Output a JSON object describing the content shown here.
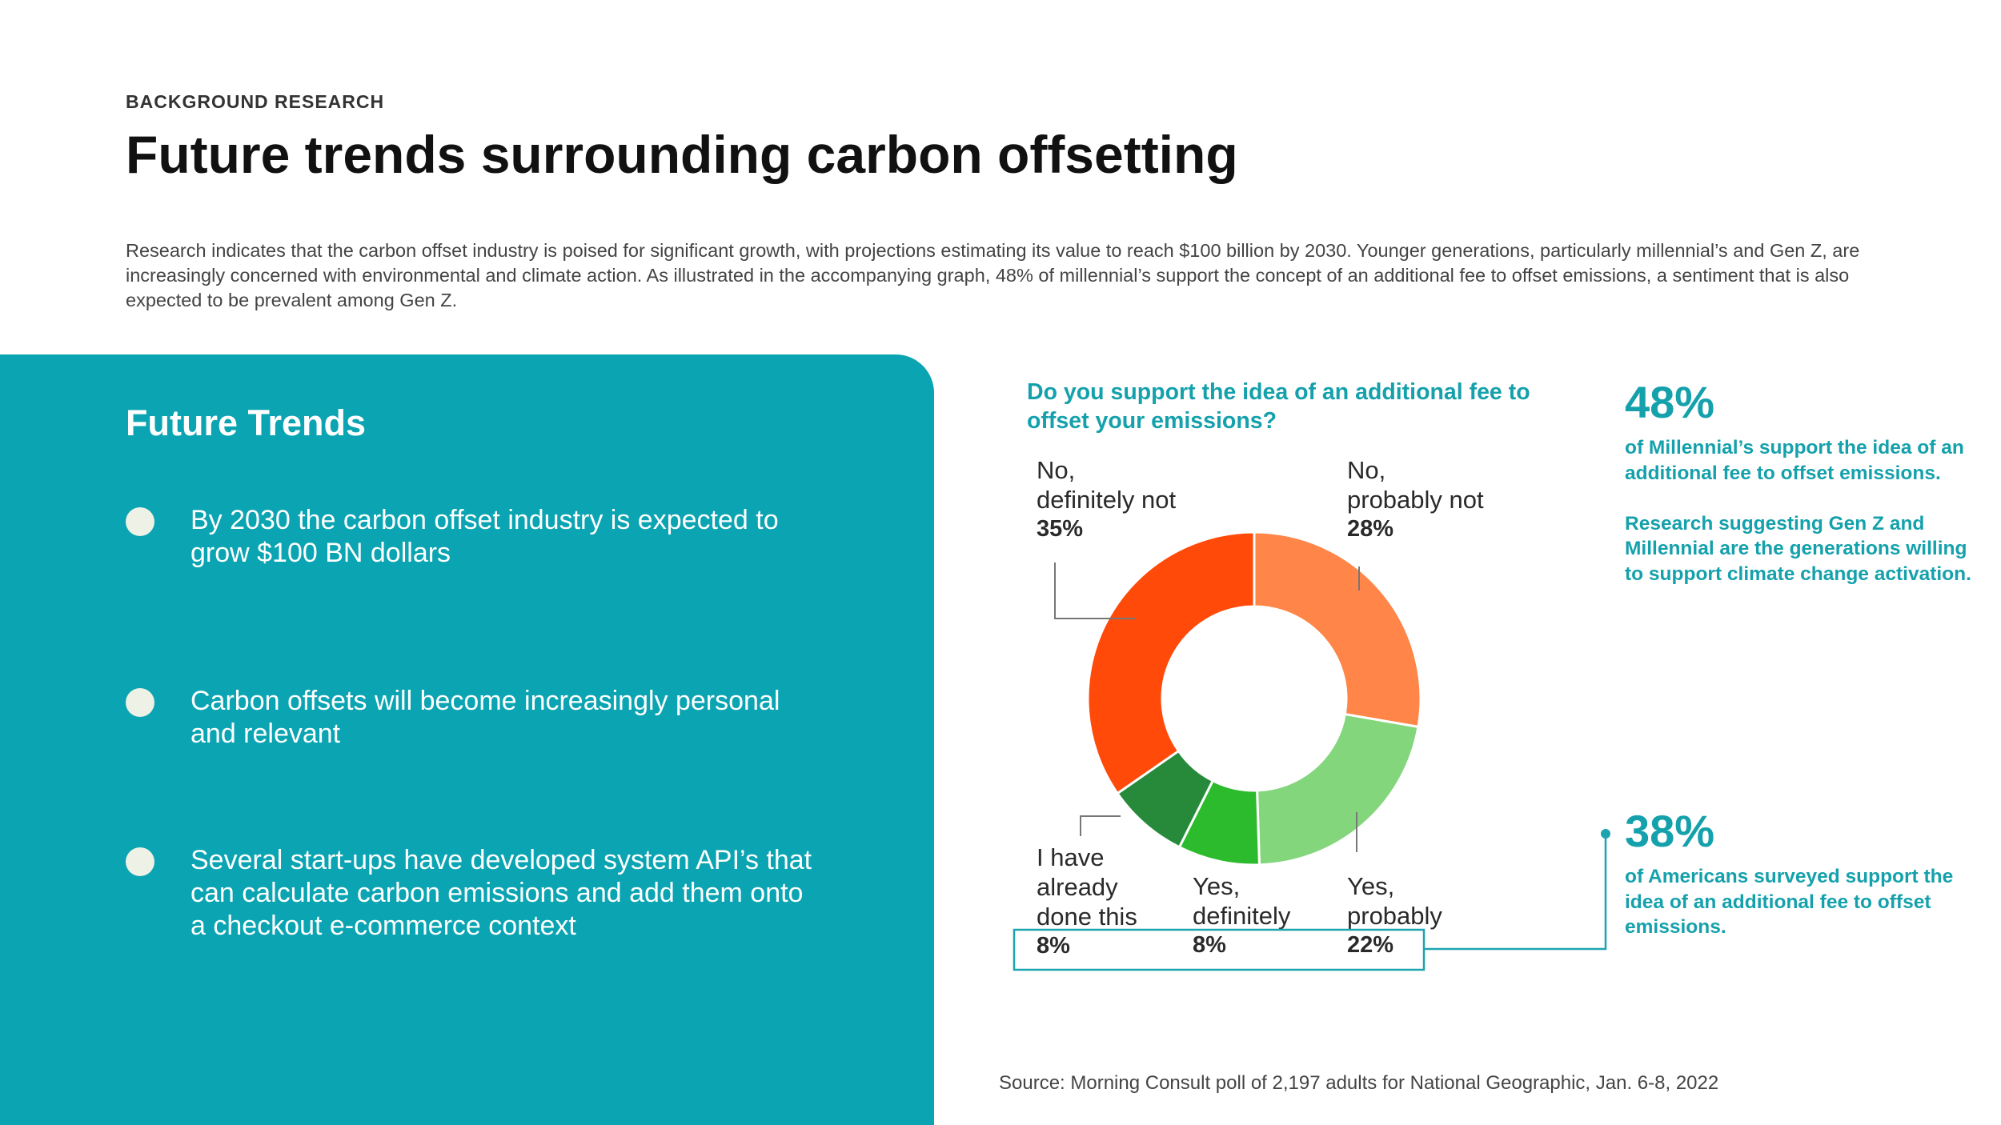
{
  "header": {
    "eyebrow": "BACKGROUND RESEARCH",
    "title": "Future trends surrounding carbon offsetting",
    "intro": "Research indicates that the carbon offset industry is poised for significant growth, with projections estimating its value to reach $100 billion by 2030. Younger generations, particularly millennial’s and Gen Z, are increasingly concerned with environmental and climate action. As illustrated in the accompanying graph, 48% of millennial’s support the concept of an additional fee to offset emissions, a sentiment that is also expected to be prevalent among Gen Z."
  },
  "trends": {
    "heading": "Future Trends",
    "items": [
      "By 2030 the carbon offset industry is expected to grow $100 BN dollars",
      "Carbon offsets will become increasingly personal and relevant",
      "Several start-ups have developed system API’s that can calculate carbon emissions and add them onto a checkout e-commerce context"
    ]
  },
  "chart_data": {
    "type": "pie",
    "donut": true,
    "title": "Do you support the idea of an additional fee to offset your emissions?",
    "slices": [
      {
        "label_lines": [
          "No,",
          "probably not"
        ],
        "value": 28,
        "pct": "28%",
        "color": "#ff8548"
      },
      {
        "label_lines": [
          "Yes,",
          "probably"
        ],
        "value": 22,
        "pct": "22%",
        "color": "#84d67c"
      },
      {
        "label_lines": [
          "Yes,",
          "definitely"
        ],
        "value": 8,
        "pct": "8%",
        "color": "#2cbb2c"
      },
      {
        "label_lines": [
          "I have",
          "already",
          "done this"
        ],
        "value": 8,
        "pct": "8%",
        "color": "#268a3a"
      },
      {
        "label_lines": [
          "No,",
          "definitely not"
        ],
        "value": 35,
        "pct": "35%",
        "color": "#ff4a0a"
      }
    ]
  },
  "stats": [
    {
      "pct": "48%",
      "text": "of Millennial’s support the idea of an additional fee to offset emissions.\n\nResearch suggesting Gen Z and Millennial are the generations willing to support climate change activation."
    },
    {
      "pct": "38%",
      "text": "of Americans surveyed support the idea of an additional fee to offset emissions."
    }
  ],
  "source": "Source: Morning Consult poll of 2,197 adults for National Geographic, Jan. 6-8, 2022",
  "colors": {
    "teal": "#0aa4b2",
    "accent_text": "#15a1ac"
  }
}
